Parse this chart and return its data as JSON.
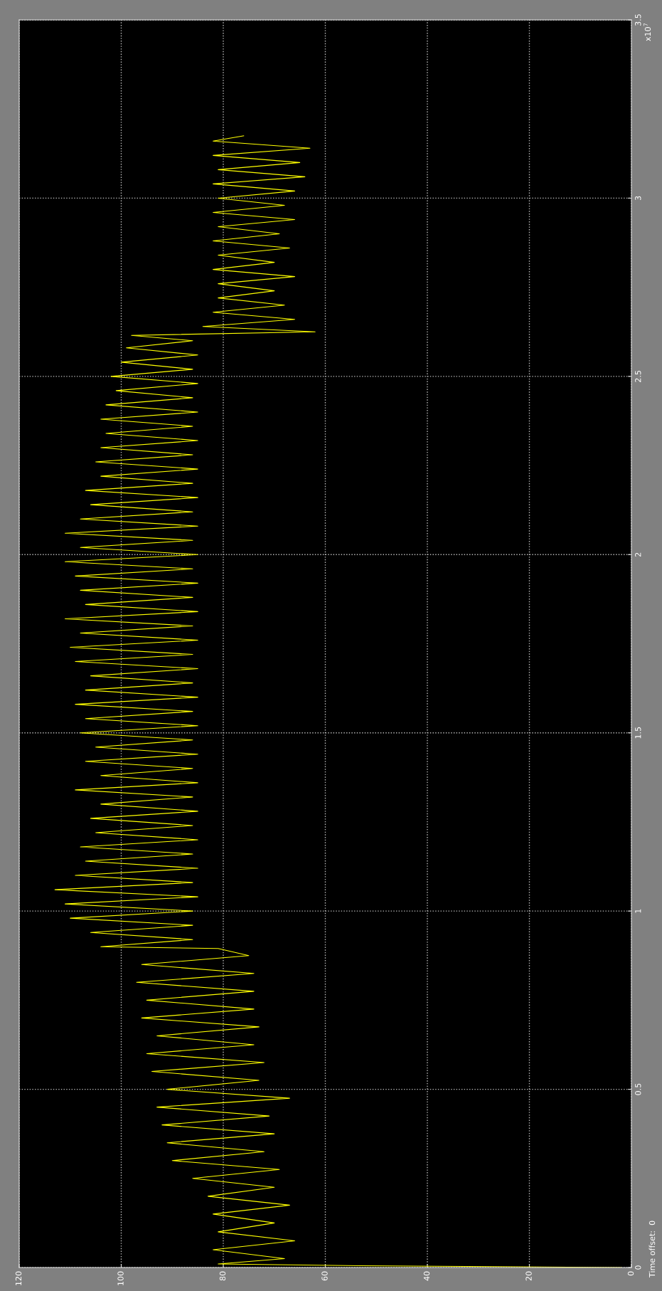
{
  "chart_data": {
    "type": "line",
    "series": [
      {
        "color": "#ffff00",
        "x": [
          2,
          53,
          81,
          68,
          82,
          66,
          81,
          70,
          82,
          67,
          83,
          70,
          86,
          69,
          90,
          72,
          91,
          70,
          92,
          71,
          93,
          67,
          91,
          73,
          94,
          72,
          95,
          74,
          93,
          73,
          96,
          74,
          95,
          74,
          97,
          74,
          96,
          75,
          81,
          104,
          86,
          106,
          86,
          110,
          86,
          111,
          85,
          113,
          86,
          109,
          85,
          107,
          86,
          108,
          85,
          105,
          86,
          106,
          85,
          104,
          86,
          109,
          85,
          104,
          86,
          107,
          85,
          105,
          86,
          108,
          85,
          107,
          86,
          109,
          85,
          107,
          86,
          106,
          85,
          109,
          86,
          110,
          85,
          108,
          86,
          111,
          85,
          107,
          86,
          108,
          85,
          109,
          86,
          111,
          85,
          108,
          86,
          111,
          85,
          108,
          86,
          106,
          85,
          107,
          86,
          104,
          85,
          105,
          86,
          104,
          85,
          103,
          86,
          104,
          85,
          103,
          86,
          101,
          85,
          102,
          86,
          100,
          85,
          99,
          86,
          98,
          62,
          84,
          66,
          82,
          68,
          81,
          70,
          81,
          66,
          82,
          70,
          81,
          67,
          82,
          69,
          81,
          66,
          82,
          68,
          81,
          66,
          82,
          64,
          81,
          65,
          82,
          63,
          82,
          76
        ],
        "values": [
          0,
          0.005,
          0.01,
          0.025,
          0.05,
          0.075,
          0.1,
          0.125,
          0.15,
          0.175,
          0.2,
          0.225,
          0.25,
          0.275,
          0.3,
          0.325,
          0.35,
          0.375,
          0.4,
          0.425,
          0.45,
          0.475,
          0.5,
          0.525,
          0.55,
          0.575,
          0.6,
          0.625,
          0.65,
          0.675,
          0.7,
          0.725,
          0.75,
          0.775,
          0.8,
          0.825,
          0.85,
          0.875,
          0.895,
          0.9,
          0.92,
          0.94,
          0.96,
          0.98,
          1.0,
          1.02,
          1.04,
          1.06,
          1.08,
          1.1,
          1.12,
          1.14,
          1.16,
          1.18,
          1.2,
          1.22,
          1.24,
          1.26,
          1.28,
          1.3,
          1.32,
          1.34,
          1.36,
          1.38,
          1.4,
          1.42,
          1.44,
          1.46,
          1.48,
          1.5,
          1.52,
          1.54,
          1.56,
          1.58,
          1.6,
          1.62,
          1.64,
          1.66,
          1.68,
          1.7,
          1.72,
          1.74,
          1.76,
          1.78,
          1.8,
          1.82,
          1.84,
          1.86,
          1.88,
          1.9,
          1.92,
          1.94,
          1.96,
          1.98,
          2.0,
          2.02,
          2.04,
          2.06,
          2.08,
          2.1,
          2.12,
          2.14,
          2.16,
          2.18,
          2.2,
          2.22,
          2.24,
          2.26,
          2.28,
          2.3,
          2.32,
          2.34,
          2.36,
          2.38,
          2.4,
          2.42,
          2.44,
          2.46,
          2.48,
          2.5,
          2.52,
          2.54,
          2.56,
          2.58,
          2.6,
          2.615,
          2.625,
          2.64,
          2.66,
          2.68,
          2.7,
          2.72,
          2.74,
          2.76,
          2.78,
          2.8,
          2.82,
          2.84,
          2.86,
          2.88,
          2.9,
          2.92,
          2.94,
          2.96,
          2.98,
          3.0,
          3.02,
          3.04,
          3.06,
          3.08,
          3.1,
          3.12,
          3.14,
          3.16,
          3.175
        ]
      }
    ],
    "xlim": [
      120,
      0
    ],
    "xticks": [
      120,
      100,
      80,
      60,
      40,
      20,
      0
    ],
    "ylim": [
      0,
      3.5
    ],
    "yticks": [
      0,
      0.5,
      1,
      1.5,
      2,
      2.5,
      3,
      3.5
    ],
    "grid": true,
    "line_style": "solid",
    "annotations": [
      "x10$^{7}$",
      "Time offset:  0"
    ]
  }
}
